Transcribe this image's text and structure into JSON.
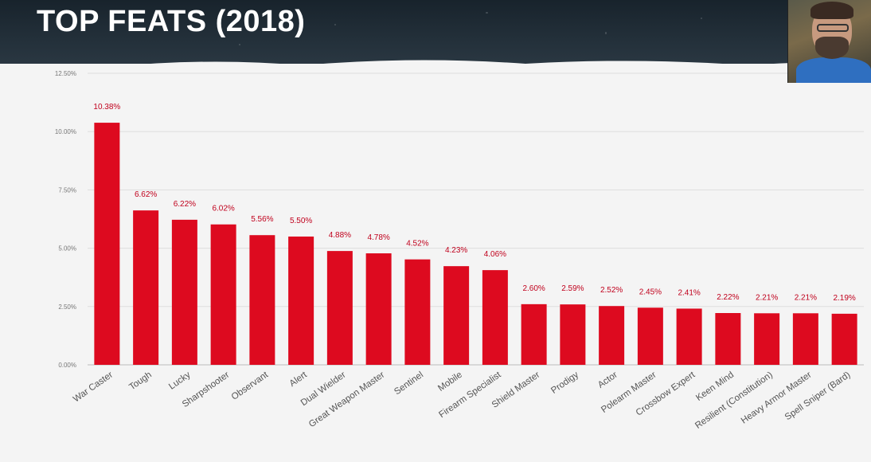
{
  "header": {
    "title": "TOP FEATS (2018)"
  },
  "colors": {
    "bar": "#dd0a1f",
    "value_label": "#c0001c",
    "grid": "#dedede"
  },
  "chart_data": {
    "type": "bar",
    "title": "TOP FEATS (2018)",
    "categories": [
      "War Caster",
      "Tough",
      "Lucky",
      "Sharpshooter",
      "Observant",
      "Alert",
      "Dual Wielder",
      "Great Weapon Master",
      "Sentinel",
      "Mobile",
      "Firearm Specialist",
      "Shield Master",
      "Prodigy",
      "Actor",
      "Polearm Master",
      "Crossbow Expert",
      "Keen Mind",
      "Resilient (Constitution)",
      "Heavy Armor Master",
      "Spell Sniper (Bard)"
    ],
    "values": [
      10.38,
      6.62,
      6.22,
      6.02,
      5.56,
      5.5,
      4.88,
      4.78,
      4.52,
      4.23,
      4.06,
      2.6,
      2.59,
      2.52,
      2.45,
      2.41,
      2.22,
      2.21,
      2.21,
      2.19
    ],
    "value_labels": [
      "10.38%",
      "6.62%",
      "6.22%",
      "6.02%",
      "5.56%",
      "5.50%",
      "4.88%",
      "4.78%",
      "4.52%",
      "4.23%",
      "4.06%",
      "2.60%",
      "2.59%",
      "2.52%",
      "2.45%",
      "2.41%",
      "2.22%",
      "2.21%",
      "2.21%",
      "2.19%"
    ],
    "yticks": [
      0,
      2.5,
      5,
      7.5,
      10,
      12.5
    ],
    "ytick_labels": [
      "0.00%",
      "2.50%",
      "5.00%",
      "7.50%",
      "10.00%",
      "12.50%"
    ],
    "ylim": [
      0,
      12.5
    ],
    "grid": true,
    "legend": "none",
    "xlabel": "",
    "ylabel": ""
  }
}
